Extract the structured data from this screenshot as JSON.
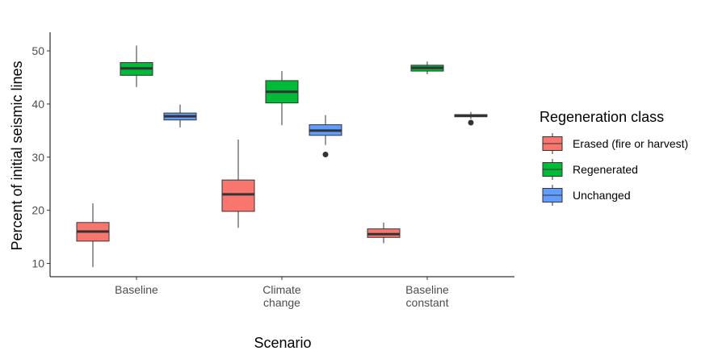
{
  "chart_data": {
    "type": "boxplot",
    "xlabel": "Scenario",
    "ylabel": "Percent of initial seismic lines",
    "ylim": [
      7.5,
      53.5
    ],
    "yticks": [
      10,
      20,
      30,
      40,
      50
    ],
    "categories": [
      {
        "lines": [
          "Baseline"
        ]
      },
      {
        "lines": [
          "Climate",
          "change"
        ]
      },
      {
        "lines": [
          "Baseline",
          "constant"
        ]
      }
    ],
    "legend": {
      "title": "Regeneration class",
      "position": "right"
    },
    "grid": false,
    "series": [
      {
        "name": "Erased (fire or harvest)",
        "color": "#F8766D",
        "boxes": [
          {
            "category": 0,
            "min": 9.3,
            "q1": 14.2,
            "median": 16.0,
            "q3": 17.7,
            "max": 21.3,
            "outliers": []
          },
          {
            "category": 1,
            "min": 16.7,
            "q1": 19.8,
            "median": 23.0,
            "q3": 25.7,
            "max": 33.3,
            "outliers": []
          },
          {
            "category": 2,
            "min": 13.8,
            "q1": 14.9,
            "median": 15.5,
            "q3": 16.5,
            "max": 17.7,
            "outliers": []
          }
        ]
      },
      {
        "name": "Regenerated",
        "color": "#00BA38",
        "boxes": [
          {
            "category": 0,
            "min": 43.2,
            "q1": 45.4,
            "median": 46.7,
            "q3": 47.8,
            "max": 51.0,
            "outliers": []
          },
          {
            "category": 1,
            "min": 36.0,
            "q1": 40.2,
            "median": 42.3,
            "q3": 44.4,
            "max": 46.2,
            "outliers": []
          },
          {
            "category": 2,
            "min": 45.6,
            "q1": 46.2,
            "median": 46.8,
            "q3": 47.3,
            "max": 48.0,
            "outliers": []
          }
        ]
      },
      {
        "name": "Unchanged",
        "color": "#619CFF",
        "boxes": [
          {
            "category": 0,
            "min": 35.6,
            "q1": 37.0,
            "median": 37.7,
            "q3": 38.3,
            "max": 39.9,
            "outliers": []
          },
          {
            "category": 1,
            "min": 32.3,
            "q1": 34.1,
            "median": 35.0,
            "q3": 36.1,
            "max": 37.9,
            "outliers": [
              30.5
            ]
          },
          {
            "category": 2,
            "min": 37.2,
            "q1": 37.6,
            "median": 37.8,
            "q3": 38.0,
            "max": 38.5,
            "outliers": [
              36.5
            ]
          }
        ]
      }
    ]
  }
}
